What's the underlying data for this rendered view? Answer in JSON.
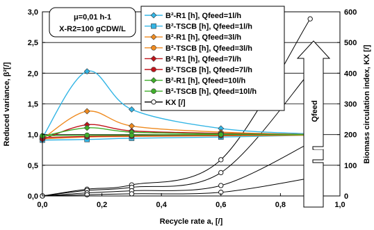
{
  "chart_data": {
    "type": "line",
    "xlabel": "Recycle rate a, [/]",
    "ylabel": "Reduced variance, β²[/]",
    "y2label": "Biomass circulation index, KX [/]",
    "xlim": [
      0.0,
      1.0
    ],
    "ylim": [
      0.0,
      3.0
    ],
    "y2lim": [
      0,
      600
    ],
    "x_ticks": [
      "0,0",
      "0,2",
      "0,4",
      "0,6",
      "0,8",
      "1,0"
    ],
    "y_ticks": [
      "0,0",
      "0,5",
      "1,0",
      "1,5",
      "2,0",
      "2,5",
      "3,0"
    ],
    "y2_ticks": [
      "0",
      "100",
      "200",
      "300",
      "400",
      "500",
      "600"
    ],
    "grid": "horizontal",
    "legend_position": "top-center",
    "annotation": {
      "line1": "μ=0,01 h-1",
      "line2": "X-R2=100 gCDW/L"
    },
    "arrow_label": "Qfeed",
    "series": [
      {
        "name": "B²-R1 [h], Qfeed=1l/h",
        "color": "#33b5e5",
        "marker": "diamond",
        "axis": "left",
        "x": [
          0.0,
          0.15,
          0.3,
          0.6,
          0.9
        ],
        "values": [
          0.95,
          2.03,
          1.41,
          1.1,
          1.01
        ]
      },
      {
        "name": "B²-TSCB [h], Qfeed=1l/h",
        "color": "#33b5e5",
        "marker": "square",
        "axis": "left",
        "x": [
          0.0,
          0.15,
          0.3,
          0.6,
          0.9
        ],
        "values": [
          0.91,
          0.92,
          0.94,
          0.96,
          0.99
        ]
      },
      {
        "name": "B²-R1 [h], Qfeed=3l/h",
        "color": "#ef8a1e",
        "marker": "diamond",
        "axis": "left",
        "x": [
          0.0,
          0.15,
          0.3,
          0.6,
          0.9
        ],
        "values": [
          0.93,
          1.38,
          1.14,
          1.04,
          1.0
        ]
      },
      {
        "name": "B²-TSCB [h], Qfeed=3l/h",
        "color": "#ef8a1e",
        "marker": "circle",
        "axis": "left",
        "x": [
          0.0,
          0.15,
          0.3,
          0.6,
          0.9
        ],
        "values": [
          0.93,
          0.96,
          0.97,
          0.98,
          0.99
        ]
      },
      {
        "name": "B²-R1 [h], Qfeed=7l/h",
        "color": "#c0141b",
        "marker": "diamond",
        "axis": "left",
        "x": [
          0.0,
          0.15,
          0.3,
          0.6,
          0.9
        ],
        "values": [
          0.92,
          1.16,
          1.06,
          1.02,
          1.0
        ]
      },
      {
        "name": "B²-TSCB [h], Qfeed=7l/h",
        "color": "#c0141b",
        "marker": "circle",
        "axis": "left",
        "x": [
          0.0,
          0.15,
          0.3,
          0.6,
          0.9
        ],
        "values": [
          0.95,
          0.97,
          0.98,
          0.99,
          1.0
        ]
      },
      {
        "name": "B²-R1 [h], Qfeed=10l/h",
        "color": "#3fae2a",
        "marker": "diamond",
        "axis": "left",
        "x": [
          0.0,
          0.15,
          0.3,
          0.6,
          0.9
        ],
        "values": [
          0.97,
          1.11,
          1.04,
          1.01,
          1.0
        ]
      },
      {
        "name": "B²-TSCB [h], Qfeed=10l/h",
        "color": "#3fae2a",
        "marker": "circle",
        "axis": "left",
        "x": [
          0.0,
          0.15,
          0.3,
          0.6,
          0.9
        ],
        "values": [
          0.98,
          0.99,
          0.99,
          1.0,
          1.0
        ]
      },
      {
        "name": "KX [/]",
        "color": "#000000",
        "marker": "open-circle",
        "axis": "right",
        "x": [
          0.0,
          0.15,
          0.3,
          0.6,
          0.9
        ],
        "values": [
          0,
          22,
          36,
          118,
          577
        ]
      },
      {
        "name": "",
        "color": "#000000",
        "marker": "open-circle",
        "axis": "right",
        "x": [
          0.0,
          0.15,
          0.3,
          0.6,
          0.9
        ],
        "values": [
          0,
          18,
          28,
          76,
          405
        ]
      },
      {
        "name": "",
        "color": "#000000",
        "marker": "open-circle",
        "axis": "right",
        "x": [
          0.0,
          0.15,
          0.3,
          0.6,
          0.9
        ],
        "values": [
          0,
          10,
          17,
          34,
          173
        ]
      },
      {
        "name": "",
        "color": "#000000",
        "marker": "open-circle",
        "axis": "right",
        "x": [
          0.0,
          0.15,
          0.3,
          0.6,
          0.9
        ],
        "values": [
          0,
          4,
          7,
          12,
          58
        ]
      }
    ]
  }
}
